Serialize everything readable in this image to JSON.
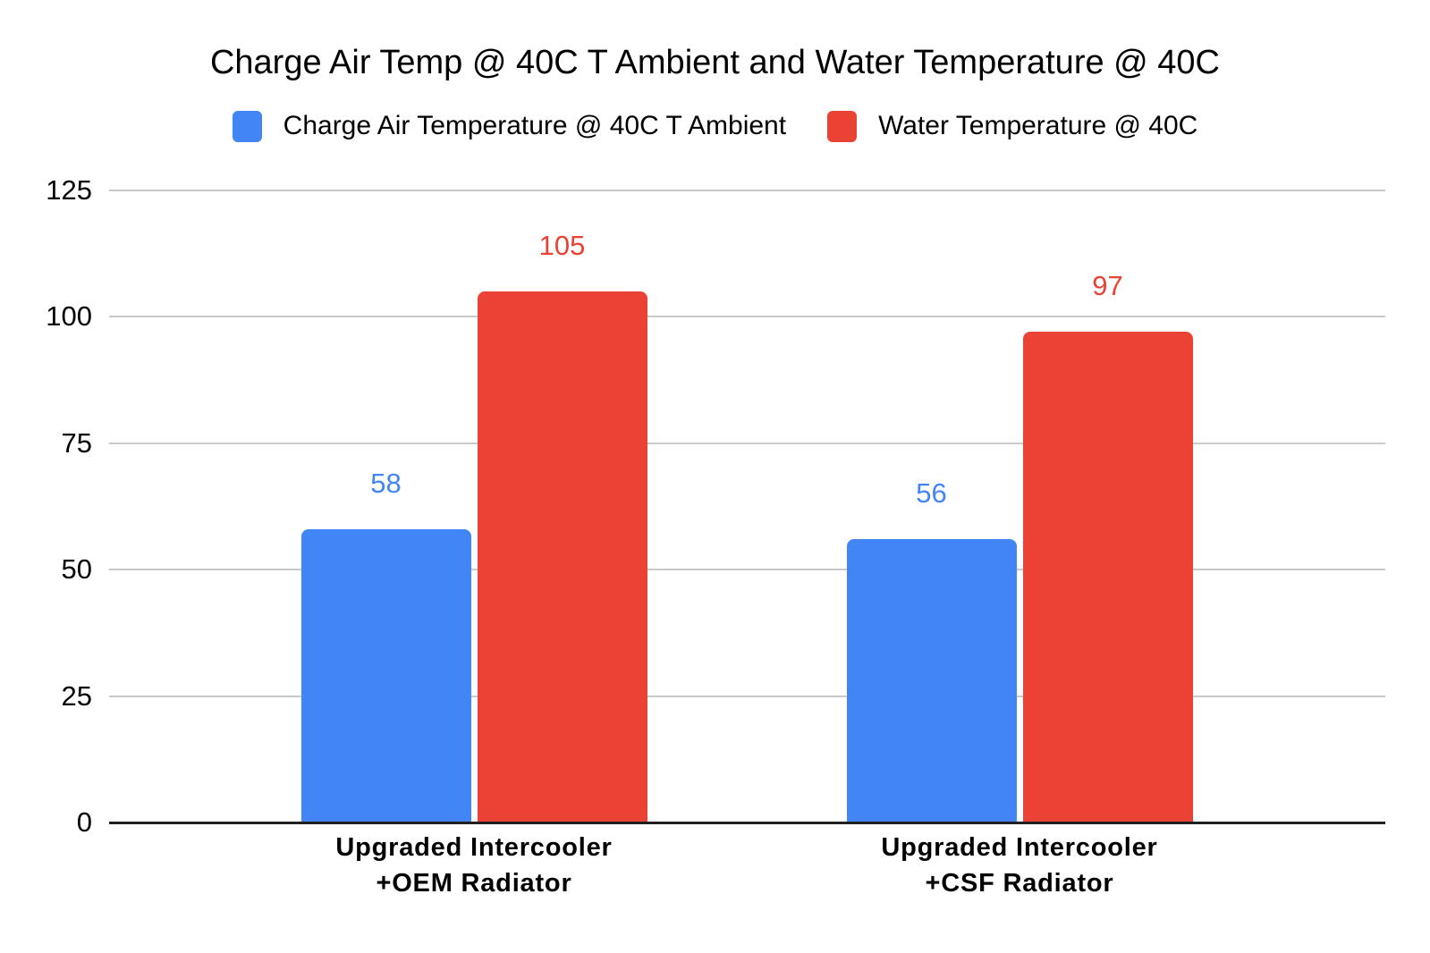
{
  "chart_data": {
    "type": "bar",
    "title": "Charge Air Temp @ 40C T Ambient and Water Temperature @ 40C",
    "categories": [
      "Upgraded Intercooler\n+OEM Radiator",
      "Upgraded Intercooler\n+CSF Radiator"
    ],
    "series": [
      {
        "name": "Charge Air Temperature @ 40C T Ambient",
        "color": "#4285F4",
        "values": [
          58,
          56
        ]
      },
      {
        "name": "Water Temperature @ 40C",
        "color": "#EA4335",
        "values": [
          105,
          97
        ]
      }
    ],
    "ylim": [
      0,
      125
    ],
    "yticks": [
      0,
      25,
      50,
      75,
      100,
      125
    ],
    "grid": true,
    "legend_position": "top",
    "data_labels": true,
    "colors": {
      "gridline": "#c9c9c9",
      "axis_line": "#212121",
      "text": "#000000",
      "background": "#ffffff"
    }
  }
}
